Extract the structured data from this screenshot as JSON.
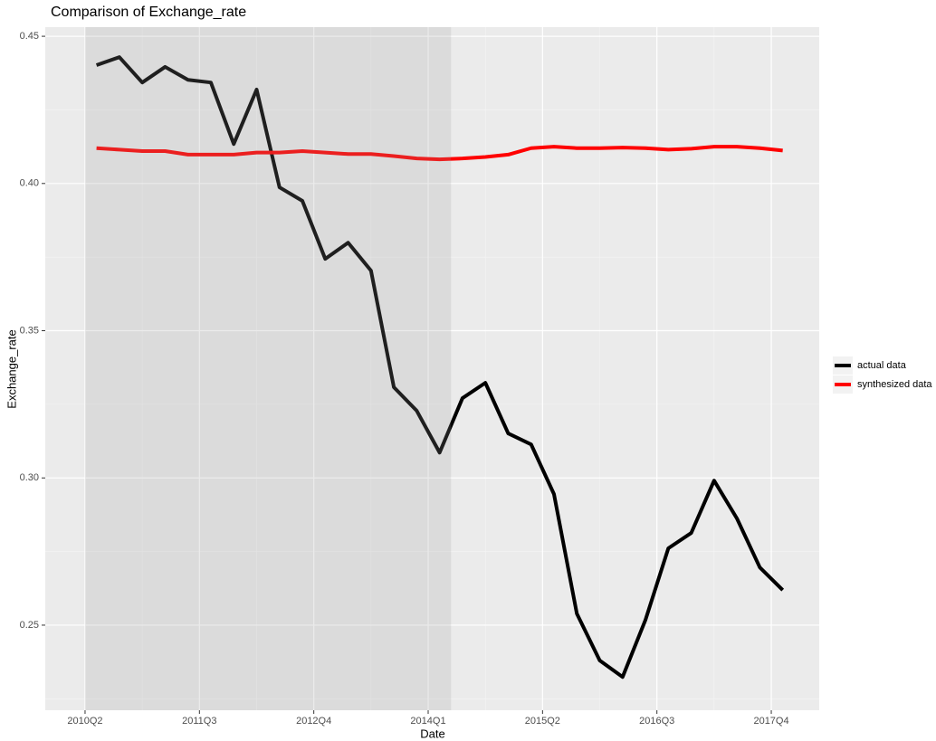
{
  "chart_data": {
    "type": "line",
    "title": "Comparison of Exchange_rate",
    "x_label": "Date",
    "y_label": "Exchange_rate",
    "x": [
      2010.375,
      2010.625,
      2010.875,
      2011.125,
      2011.375,
      2011.625,
      2011.875,
      2012.125,
      2012.375,
      2012.625,
      2012.875,
      2013.125,
      2013.375,
      2013.625,
      2013.875,
      2014.125,
      2014.375,
      2014.625,
      2014.875,
      2015.125,
      2015.375,
      2015.625,
      2015.875,
      2016.125,
      2016.375,
      2016.625,
      2016.875,
      2017.125,
      2017.375,
      2017.625,
      2017.875
    ],
    "series": [
      {
        "name": "actual data",
        "color": "#000000",
        "values": [
          0.4402,
          0.4429,
          0.4343,
          0.4396,
          0.4352,
          0.4343,
          0.4134,
          0.4319,
          0.3987,
          0.3941,
          0.3744,
          0.3799,
          0.3704,
          0.3308,
          0.3228,
          0.3086,
          0.3271,
          0.3323,
          0.3151,
          0.3114,
          0.2945,
          0.2539,
          0.238,
          0.2324,
          0.2518,
          0.2761,
          0.2813,
          0.2991,
          0.2862,
          0.2696,
          0.2619
        ]
      },
      {
        "name": "synthesized data",
        "color": "#ff0000",
        "values": [
          0.412,
          0.4115,
          0.411,
          0.411,
          0.4098,
          0.4098,
          0.4098,
          0.4105,
          0.4105,
          0.411,
          0.4105,
          0.41,
          0.41,
          0.4093,
          0.4085,
          0.4082,
          0.4085,
          0.409,
          0.4098,
          0.412,
          0.4125,
          0.412,
          0.412,
          0.4122,
          0.412,
          0.4115,
          0.4118,
          0.4125,
          0.4125,
          0.412,
          0.4112
        ]
      }
    ],
    "shade": [
      2010.25,
      2014.25
    ],
    "xlim": [
      2009.815,
      2018.274
    ],
    "xticks": [
      {
        "value": 2010.25,
        "label": "2010Q2"
      },
      {
        "value": 2011.5,
        "label": "2011Q3"
      },
      {
        "value": 2012.75,
        "label": "2012Q4"
      },
      {
        "value": 2014.0,
        "label": "2014Q1"
      },
      {
        "value": 2015.25,
        "label": "2015Q2"
      },
      {
        "value": 2016.5,
        "label": "2016Q3"
      },
      {
        "value": 2017.75,
        "label": "2017Q4"
      }
    ],
    "ylim": [
      0.2211,
      0.4531
    ],
    "yticks": [
      {
        "value": 0.25,
        "label": "0.25"
      },
      {
        "value": 0.3,
        "label": "0.30"
      },
      {
        "value": 0.35,
        "label": "0.35"
      },
      {
        "value": 0.4,
        "label": "0.40"
      },
      {
        "value": 0.45,
        "label": "0.45"
      }
    ],
    "grid": true
  }
}
